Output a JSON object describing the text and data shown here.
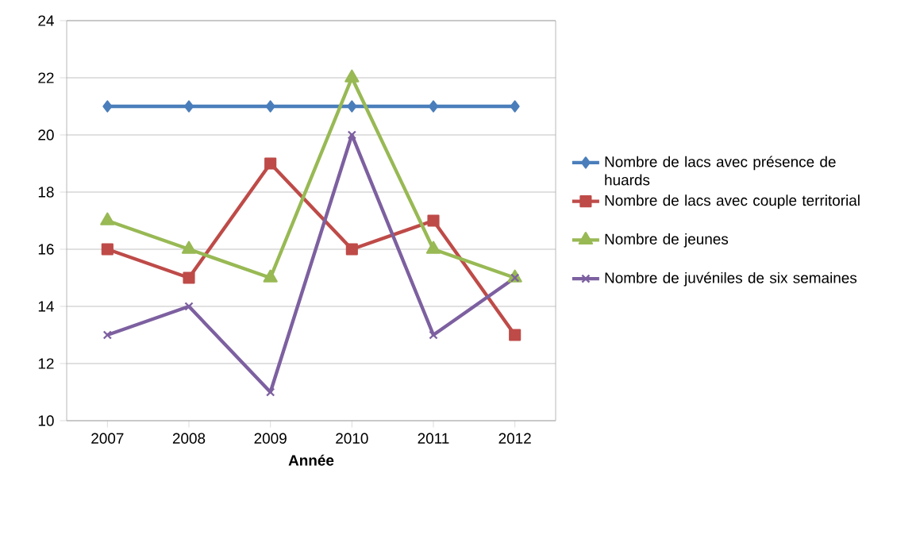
{
  "chart_data": {
    "type": "line",
    "xlabel": "Année",
    "categories": [
      "2007",
      "2008",
      "2009",
      "2010",
      "2011",
      "2012"
    ],
    "ylim": [
      10,
      24
    ],
    "yticks": [
      10,
      12,
      14,
      16,
      18,
      20,
      22,
      24
    ],
    "grid": "y",
    "legend": "right",
    "series": [
      {
        "name": "Nombre de lacs avec présence de huards",
        "color": "#4a7ebb",
        "marker": "diamond",
        "values": [
          21,
          21,
          21,
          21,
          21,
          21
        ]
      },
      {
        "name": "Nombre de lacs avec couple territorial",
        "color": "#be4b48",
        "marker": "square",
        "values": [
          16,
          15,
          19,
          16,
          17,
          13
        ]
      },
      {
        "name": "Nombre de jeunes",
        "color": "#98b954",
        "marker": "triangle",
        "values": [
          17,
          16,
          15,
          22,
          16,
          15
        ]
      },
      {
        "name": "Nombre de juvéniles de six semaines",
        "color": "#7d60a0",
        "marker": "cross",
        "values": [
          13,
          14,
          11,
          20,
          13,
          15
        ]
      }
    ]
  }
}
